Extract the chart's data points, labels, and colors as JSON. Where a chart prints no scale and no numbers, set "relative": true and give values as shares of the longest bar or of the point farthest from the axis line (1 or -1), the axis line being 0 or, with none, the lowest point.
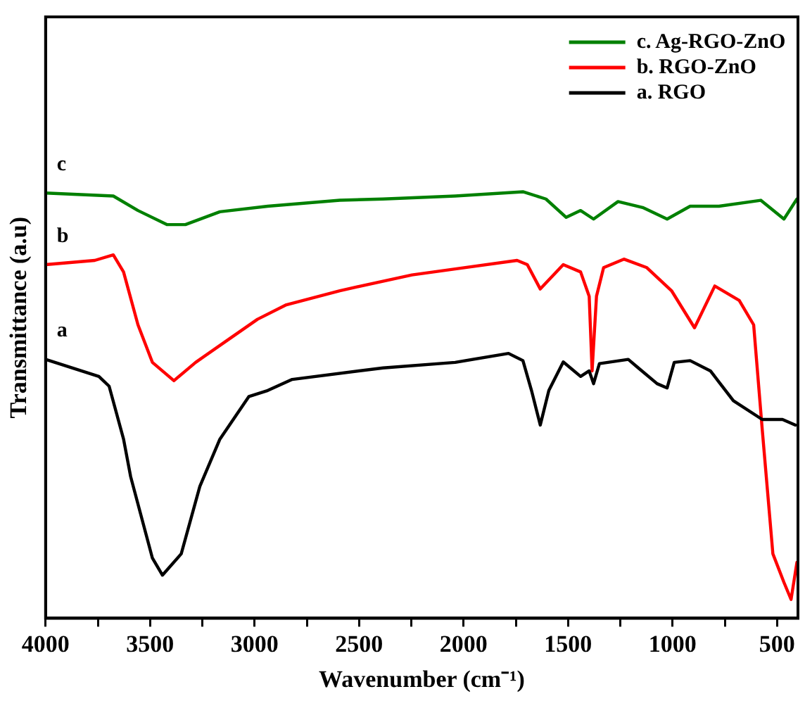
{
  "chart_data": {
    "type": "line",
    "relative": true,
    "xlabel": "Wavenumber (cm⁻¹)",
    "ylabel": "Transmittance (a.u)",
    "xlim": [
      4000,
      400
    ],
    "xticks": [
      4000,
      {
        "value": 3750,
        "label": null
      },
      3500,
      {
        "value": 3250,
        "label": null
      },
      3000,
      {
        "value": 2750,
        "label": null
      },
      2500,
      {
        "value": 2250,
        "label": null
      },
      2000,
      {
        "value": 1750,
        "label": null
      },
      1500,
      {
        "value": 1250,
        "label": null
      },
      1000,
      {
        "value": 750,
        "label": null
      },
      500
    ],
    "legend": "top right",
    "grid": false,
    "marker": "none",
    "line_style": "solid",
    "annotations": [
      "c",
      "b",
      "a"
    ],
    "series": [
      {
        "name": "c. Ag-RGO-ZnO",
        "color": "#008000",
        "x": [
          4000,
          3676,
          3558,
          3420,
          3331,
          3166,
          2937,
          2592,
          2385,
          2040,
          1716,
          1606,
          1509,
          1440,
          1378,
          1261,
          1143,
          1026,
          916,
          778,
          578,
          467,
          405
        ],
        "values": [
          0.997,
          0.99,
          0.956,
          0.923,
          0.923,
          0.953,
          0.966,
          0.98,
          0.983,
          0.99,
          1.0,
          0.983,
          0.94,
          0.956,
          0.936,
          0.977,
          0.963,
          0.936,
          0.966,
          0.966,
          0.98,
          0.936,
          0.983
        ]
      },
      {
        "name": "b. RGO-ZnO",
        "color": "#ff0000",
        "x": [
          4000,
          3765,
          3676,
          3627,
          3558,
          3489,
          3386,
          3282,
          3124,
          2986,
          2848,
          2592,
          2247,
          2040,
          1744,
          1695,
          1633,
          1523,
          1440,
          1399,
          1385,
          1364,
          1330,
          1233,
          1123,
          1005,
          895,
          798,
          681,
          612,
          571,
          520,
          467,
          433,
          405
        ],
        "values": [
          0.829,
          0.839,
          0.852,
          0.812,
          0.688,
          0.6,
          0.557,
          0.6,
          0.654,
          0.701,
          0.735,
          0.768,
          0.805,
          0.819,
          0.839,
          0.829,
          0.772,
          0.829,
          0.812,
          0.755,
          0.58,
          0.755,
          0.822,
          0.842,
          0.822,
          0.768,
          0.681,
          0.779,
          0.745,
          0.688,
          0.443,
          0.151,
          0.084,
          0.044,
          0.131
        ]
      },
      {
        "name": "a. RGO",
        "color": "#000000",
        "x": [
          4000,
          3745,
          3696,
          3627,
          3593,
          3489,
          3441,
          3351,
          3262,
          3166,
          3027,
          2937,
          2820,
          2385,
          2040,
          1785,
          1716,
          1675,
          1633,
          1592,
          1523,
          1440,
          1399,
          1378,
          1350,
          1212,
          1164,
          1074,
          1026,
          992,
          916,
          819,
          709,
          571,
          474,
          412
        ],
        "values": [
          0.607,
          0.567,
          0.544,
          0.42,
          0.332,
          0.141,
          0.101,
          0.151,
          0.309,
          0.42,
          0.52,
          0.534,
          0.56,
          0.587,
          0.6,
          0.621,
          0.604,
          0.534,
          0.453,
          0.534,
          0.601,
          0.567,
          0.58,
          0.55,
          0.597,
          0.607,
          0.587,
          0.55,
          0.54,
          0.6,
          0.604,
          0.58,
          0.51,
          0.466,
          0.466,
          0.453
        ]
      }
    ]
  }
}
